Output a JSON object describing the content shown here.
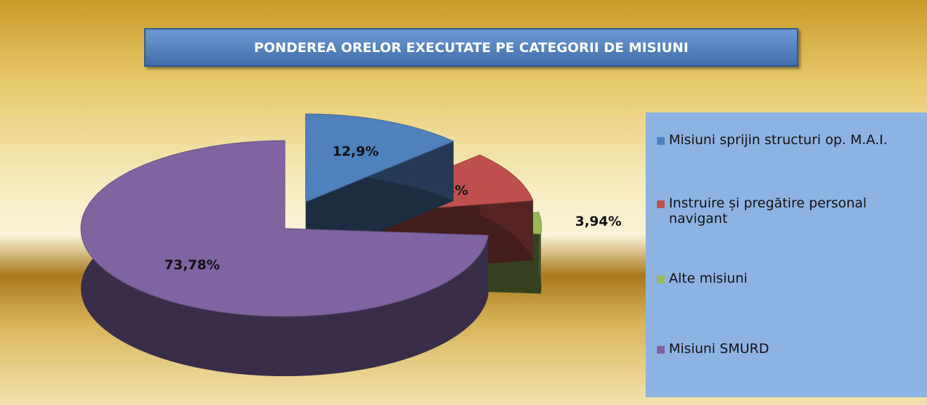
{
  "chart_data": {
    "type": "pie",
    "title": "PONDEREA ORELOR EXECUTATE PE CATEGORII DE MISIUNI",
    "categories": [
      "Misiuni sprijin structuri op. M.A.I.",
      "Instruire și pregătire personal navigant",
      "Alte misiuni",
      "Misiuni SMURD"
    ],
    "values": [
      12.9,
      9.38,
      3.94,
      73.78
    ],
    "value_labels": [
      "12,9%",
      "9,38%",
      "3,94%",
      "73,78%"
    ],
    "colors": [
      "#4f81bd",
      "#c0504d",
      "#9bbb59",
      "#8064a2"
    ],
    "legend": "right"
  }
}
